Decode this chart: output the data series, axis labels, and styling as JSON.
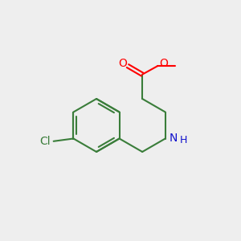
{
  "bg_color": "#eeeeee",
  "bond_color": "#3a7d3a",
  "bond_width": 1.5,
  "atom_colors": {
    "O": "#ff0000",
    "N": "#1010cc",
    "Cl": "#3a7d3a",
    "C": "#3a7d3a"
  },
  "font_size_atom": 10,
  "font_size_me": 9,
  "s": 1.0
}
